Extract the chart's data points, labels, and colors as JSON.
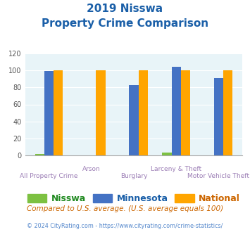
{
  "title_line1": "2019 Nisswa",
  "title_line2": "Property Crime Comparison",
  "categories": [
    "All Property Crime",
    "Arson",
    "Burglary",
    "Larceny & Theft",
    "Motor Vehicle Theft"
  ],
  "nisswa": [
    2,
    0,
    0,
    3,
    0
  ],
  "minnesota": [
    99,
    0,
    83,
    104,
    91
  ],
  "national": [
    100,
    100,
    100,
    100,
    100
  ],
  "nisswa_color": "#7dc142",
  "minnesota_color": "#4472c4",
  "national_color": "#ffa500",
  "bg_color": "#e8f4f8",
  "ylim": [
    0,
    120
  ],
  "yticks": [
    0,
    20,
    40,
    60,
    80,
    100,
    120
  ],
  "xlabel_color": "#9b7db5",
  "title_color": "#1a5fa8",
  "footnote1": "Compared to U.S. average. (U.S. average equals 100)",
  "footnote2": "© 2024 CityRating.com - https://www.cityrating.com/crime-statistics/",
  "footnote1_color": "#cc6600",
  "footnote2_color": "#5588cc",
  "legend_nisswa": "Nisswa",
  "legend_minnesota": "Minnesota",
  "legend_national": "National",
  "legend_nisswa_color": "#228B22",
  "legend_minnesota_color": "#1a5fa8",
  "legend_national_color": "#cc6600"
}
